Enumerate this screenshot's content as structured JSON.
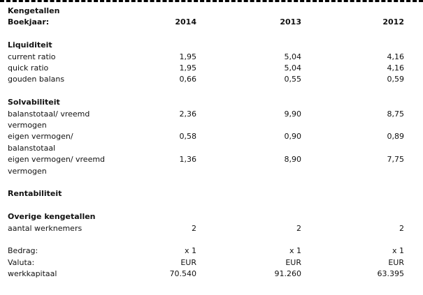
{
  "header": {
    "title": "Kengetallen",
    "year_label": "Boekjaar:",
    "years": [
      "2014",
      "2013",
      "2012"
    ]
  },
  "sections": [
    {
      "title": "Liquiditeit",
      "rows": [
        {
          "label": [
            "current ratio"
          ],
          "values": [
            "1,95",
            "5,04",
            "4,16"
          ]
        },
        {
          "label": [
            "quick ratio"
          ],
          "values": [
            "1,95",
            "5,04",
            "4,16"
          ]
        },
        {
          "label": [
            "gouden balans"
          ],
          "values": [
            "0,66",
            "0,55",
            "0,59"
          ]
        }
      ]
    },
    {
      "title": "Solvabiliteit",
      "rows": [
        {
          "label": [
            "balanstotaal/ vreemd",
            "vermogen"
          ],
          "values": [
            "2,36",
            "9,90",
            "8,75"
          ]
        },
        {
          "label": [
            "eigen vermogen/",
            "balanstotaal"
          ],
          "values": [
            "0,58",
            "0,90",
            "0,89"
          ]
        },
        {
          "label": [
            "eigen vermogen/ vreemd",
            "vermogen"
          ],
          "values": [
            "1,36",
            "8,90",
            "7,75"
          ]
        }
      ]
    },
    {
      "title": "Rentabiliteit",
      "rows": []
    },
    {
      "title": "Overige kengetallen",
      "rows": [
        {
          "label": [
            "aantal werknemers"
          ],
          "values": [
            "2",
            "2",
            "2"
          ]
        }
      ]
    },
    {
      "rows": [
        {
          "label": [
            "Bedrag:"
          ],
          "values": [
            "x 1",
            "x 1",
            "x 1"
          ]
        },
        {
          "label": [
            "Valuta:"
          ],
          "values": [
            "EUR",
            "EUR",
            "EUR"
          ]
        },
        {
          "label": [
            "werkkapitaal"
          ],
          "values": [
            "70.540",
            "91.260",
            "63.395"
          ]
        }
      ]
    }
  ]
}
